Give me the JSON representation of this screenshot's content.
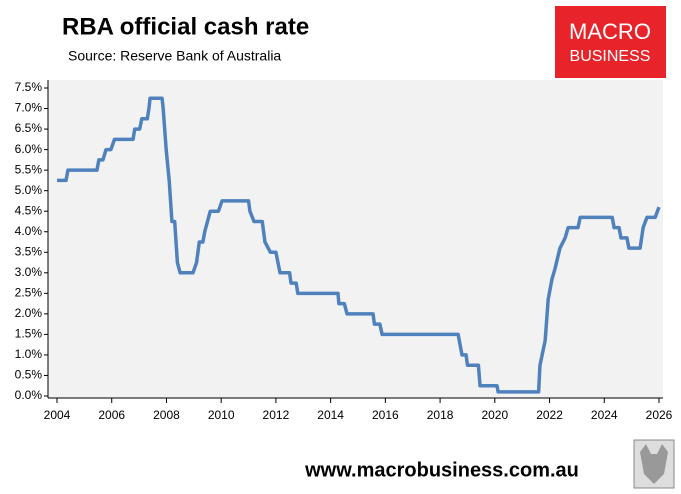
{
  "chart_data": {
    "type": "line",
    "title": "RBA official cash rate",
    "subtitle": "Source: Reserve Bank of Australia",
    "logo": [
      "MACRO",
      "BUSINESS"
    ],
    "footer": "www.macrobusiness.com.au",
    "x": [
      2004.0,
      2004.33,
      2004.4,
      2005.46,
      2005.53,
      2005.68,
      2005.79,
      2005.97,
      2006.1,
      2006.78,
      2006.84,
      2007.02,
      2007.1,
      2007.3,
      2007.36,
      2007.4,
      2007.84,
      2007.88,
      2007.99,
      2008.1,
      2008.2,
      2008.3,
      2008.4,
      2008.5,
      2008.97,
      2009.1,
      2009.2,
      2009.33,
      2009.4,
      2009.6,
      2009.9,
      2010.03,
      2011.0,
      2011.05,
      2011.2,
      2011.5,
      2011.6,
      2011.8,
      2012.0,
      2012.15,
      2012.5,
      2012.55,
      2012.74,
      2012.8,
      2014.27,
      2014.3,
      2014.5,
      2014.6,
      2015.55,
      2015.6,
      2015.8,
      2015.88,
      2018.66,
      2018.8,
      2018.95,
      2019.0,
      2019.4,
      2019.46,
      2020.08,
      2020.12,
      2021.6,
      2021.65,
      2021.84,
      2021.95,
      2022.09,
      2022.2,
      2022.38,
      2022.57,
      2022.68,
      2023.04,
      2023.12,
      2024.29,
      2024.36,
      2024.54,
      2024.61,
      2024.83,
      2024.9,
      2025.31,
      2025.42,
      2025.56,
      2025.86,
      2026.0
    ],
    "series": [
      {
        "name": "Cash rate",
        "color": "#4f81bd",
        "values": [
          5.25,
          5.25,
          5.5,
          5.5,
          5.75,
          5.75,
          6.0,
          6.0,
          6.25,
          6.25,
          6.5,
          6.5,
          6.75,
          6.75,
          7.0,
          7.25,
          7.25,
          7.0,
          6.0,
          5.25,
          4.25,
          4.25,
          3.25,
          3.0,
          3.0,
          3.25,
          3.75,
          3.75,
          4.0,
          4.5,
          4.5,
          4.75,
          4.75,
          4.5,
          4.25,
          4.25,
          3.75,
          3.5,
          3.5,
          3.0,
          3.0,
          2.75,
          2.75,
          2.5,
          2.5,
          2.25,
          2.25,
          2.0,
          2.0,
          1.75,
          1.75,
          1.5,
          1.5,
          1.0,
          1.0,
          0.75,
          0.75,
          0.25,
          0.25,
          0.1,
          0.1,
          0.75,
          1.35,
          2.35,
          2.85,
          3.1,
          3.6,
          3.85,
          4.1,
          4.1,
          4.35,
          4.35,
          4.1,
          4.1,
          3.85,
          3.85,
          3.6,
          3.6,
          4.1,
          4.35,
          4.35,
          4.6
        ]
      }
    ],
    "xlim": [
      2004,
      2026
    ],
    "xticks": [
      2004,
      2006,
      2008,
      2010,
      2012,
      2014,
      2016,
      2018,
      2020,
      2022,
      2024,
      2026
    ],
    "ylim": [
      0,
      7.5
    ],
    "yticks": [
      {
        "value": 0,
        "label": "0.0%"
      },
      {
        "value": 0.5,
        "label": "0.5%"
      },
      {
        "value": 1,
        "label": "1.0%"
      },
      {
        "value": 1.5,
        "label": "1.5%"
      },
      {
        "value": 2,
        "label": "2.0%"
      },
      {
        "value": 2.5,
        "label": "2.5%"
      },
      {
        "value": 3,
        "label": "3.0%"
      },
      {
        "value": 3.5,
        "label": "3.5%"
      },
      {
        "value": 4,
        "label": "4.0%"
      },
      {
        "value": 4.5,
        "label": "4.5%"
      },
      {
        "value": 5,
        "label": "5.0%"
      },
      {
        "value": 5.5,
        "label": "5.5%"
      },
      {
        "value": 6,
        "label": "6.0%"
      },
      {
        "value": 6.5,
        "label": "6.5%"
      },
      {
        "value": 7,
        "label": "7.0%"
      },
      {
        "value": 7.5,
        "label": "7.5%"
      }
    ],
    "grid": false
  }
}
